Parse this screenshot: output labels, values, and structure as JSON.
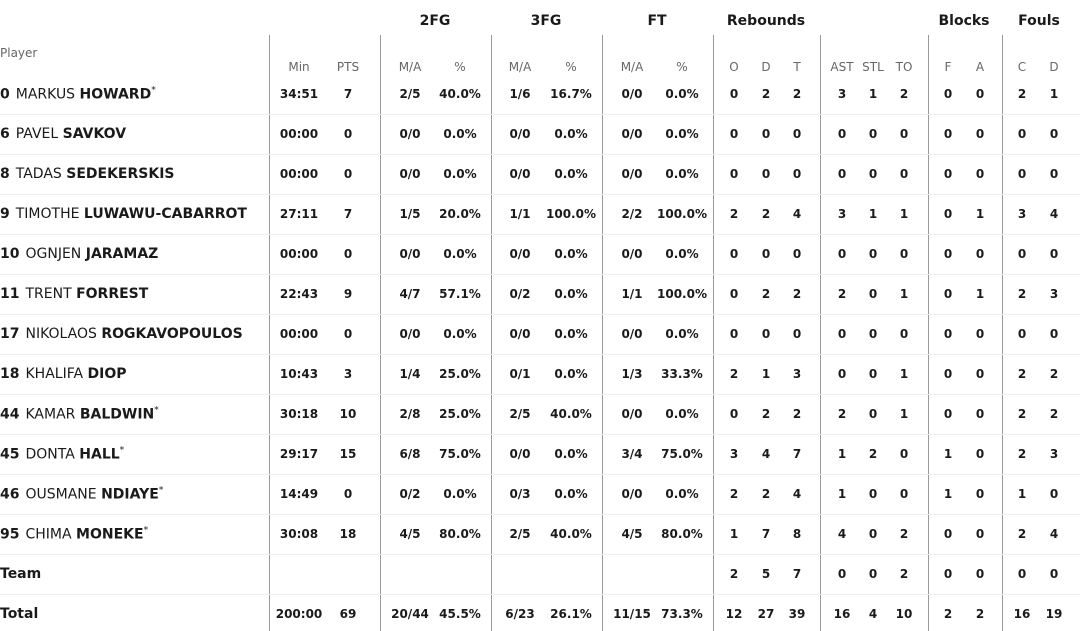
{
  "group_headers": [
    "2FG",
    "3FG",
    "FT",
    "Rebounds",
    "Blocks",
    "Fouls"
  ],
  "column_headers": {
    "player": "Player",
    "stats": [
      "Min",
      "PTS",
      "M/A",
      "%",
      "M/A",
      "%",
      "M/A",
      "%",
      "O",
      "D",
      "T",
      "AST",
      "STL",
      "TO",
      "F",
      "A",
      "C",
      "D"
    ]
  },
  "rows": [
    {
      "player": {
        "number": "0",
        "first": "MARKUS",
        "last": "HOWARD",
        "marker": "*"
      },
      "stats": [
        "34:51",
        "7",
        "2/5",
        "40.0%",
        "1/6",
        "16.7%",
        "0/0",
        "0.0%",
        "0",
        "2",
        "2",
        "3",
        "1",
        "2",
        "0",
        "0",
        "2",
        "1"
      ]
    },
    {
      "player": {
        "number": "6",
        "first": "PAVEL",
        "last": "SAVKOV"
      },
      "stats": [
        "00:00",
        "0",
        "0/0",
        "0.0%",
        "0/0",
        "0.0%",
        "0/0",
        "0.0%",
        "0",
        "0",
        "0",
        "0",
        "0",
        "0",
        "0",
        "0",
        "0",
        "0"
      ]
    },
    {
      "player": {
        "number": "8",
        "first": "TADAS",
        "last": "SEDEKERSKIS"
      },
      "stats": [
        "00:00",
        "0",
        "0/0",
        "0.0%",
        "0/0",
        "0.0%",
        "0/0",
        "0.0%",
        "0",
        "0",
        "0",
        "0",
        "0",
        "0",
        "0",
        "0",
        "0",
        "0"
      ]
    },
    {
      "player": {
        "number": "9",
        "first": "TIMOTHE",
        "last": "LUWAWU-CABARROT"
      },
      "stats": [
        "27:11",
        "7",
        "1/5",
        "20.0%",
        "1/1",
        "100.0%",
        "2/2",
        "100.0%",
        "2",
        "2",
        "4",
        "3",
        "1",
        "1",
        "0",
        "1",
        "3",
        "4"
      ]
    },
    {
      "player": {
        "number": "10",
        "first": "OGNJEN",
        "last": "JARAMAZ"
      },
      "stats": [
        "00:00",
        "0",
        "0/0",
        "0.0%",
        "0/0",
        "0.0%",
        "0/0",
        "0.0%",
        "0",
        "0",
        "0",
        "0",
        "0",
        "0",
        "0",
        "0",
        "0",
        "0"
      ]
    },
    {
      "player": {
        "number": "11",
        "first": "TRENT",
        "last": "FORREST"
      },
      "stats": [
        "22:43",
        "9",
        "4/7",
        "57.1%",
        "0/2",
        "0.0%",
        "1/1",
        "100.0%",
        "0",
        "2",
        "2",
        "2",
        "0",
        "1",
        "0",
        "1",
        "2",
        "3"
      ]
    },
    {
      "player": {
        "number": "17",
        "first": "NIKOLAOS",
        "last": "ROGKAVOPOULOS"
      },
      "stats": [
        "00:00",
        "0",
        "0/0",
        "0.0%",
        "0/0",
        "0.0%",
        "0/0",
        "0.0%",
        "0",
        "0",
        "0",
        "0",
        "0",
        "0",
        "0",
        "0",
        "0",
        "0"
      ]
    },
    {
      "player": {
        "number": "18",
        "first": "KHALIFA",
        "last": "DIOP"
      },
      "stats": [
        "10:43",
        "3",
        "1/4",
        "25.0%",
        "0/1",
        "0.0%",
        "1/3",
        "33.3%",
        "2",
        "1",
        "3",
        "0",
        "0",
        "1",
        "0",
        "0",
        "2",
        "2"
      ]
    },
    {
      "player": {
        "number": "44",
        "first": "KAMAR",
        "last": "BALDWIN",
        "marker": "*"
      },
      "stats": [
        "30:18",
        "10",
        "2/8",
        "25.0%",
        "2/5",
        "40.0%",
        "0/0",
        "0.0%",
        "0",
        "2",
        "2",
        "2",
        "0",
        "1",
        "0",
        "0",
        "2",
        "2"
      ]
    },
    {
      "player": {
        "number": "45",
        "first": "DONTA",
        "last": "HALL",
        "marker": "*"
      },
      "stats": [
        "29:17",
        "15",
        "6/8",
        "75.0%",
        "0/0",
        "0.0%",
        "3/4",
        "75.0%",
        "3",
        "4",
        "7",
        "1",
        "2",
        "0",
        "1",
        "0",
        "2",
        "3"
      ]
    },
    {
      "player": {
        "number": "46",
        "first": "OUSMANE",
        "last": "NDIAYE",
        "marker": "*"
      },
      "stats": [
        "14:49",
        "0",
        "0/2",
        "0.0%",
        "0/3",
        "0.0%",
        "0/0",
        "0.0%",
        "2",
        "2",
        "4",
        "1",
        "0",
        "0",
        "1",
        "0",
        "1",
        "0"
      ]
    },
    {
      "player": {
        "number": "95",
        "first": "CHIMA",
        "last": "MONEKE",
        "marker": "*"
      },
      "stats": [
        "30:08",
        "18",
        "4/5",
        "80.0%",
        "2/5",
        "40.0%",
        "4/5",
        "80.0%",
        "1",
        "7",
        "8",
        "4",
        "0",
        "2",
        "0",
        "0",
        "2",
        "4"
      ]
    },
    {
      "label": "Team",
      "stats": [
        null,
        null,
        null,
        null,
        null,
        null,
        null,
        null,
        "2",
        "5",
        "7",
        "0",
        "0",
        "2",
        "0",
        "0",
        "0",
        "0"
      ]
    },
    {
      "label": "Total",
      "stats": [
        "200:00",
        "69",
        "20/44",
        "45.5%",
        "6/23",
        "26.1%",
        "11/15",
        "73.3%",
        "12",
        "27",
        "39",
        "16",
        "4",
        "10",
        "2",
        "2",
        "16",
        "19"
      ]
    }
  ]
}
